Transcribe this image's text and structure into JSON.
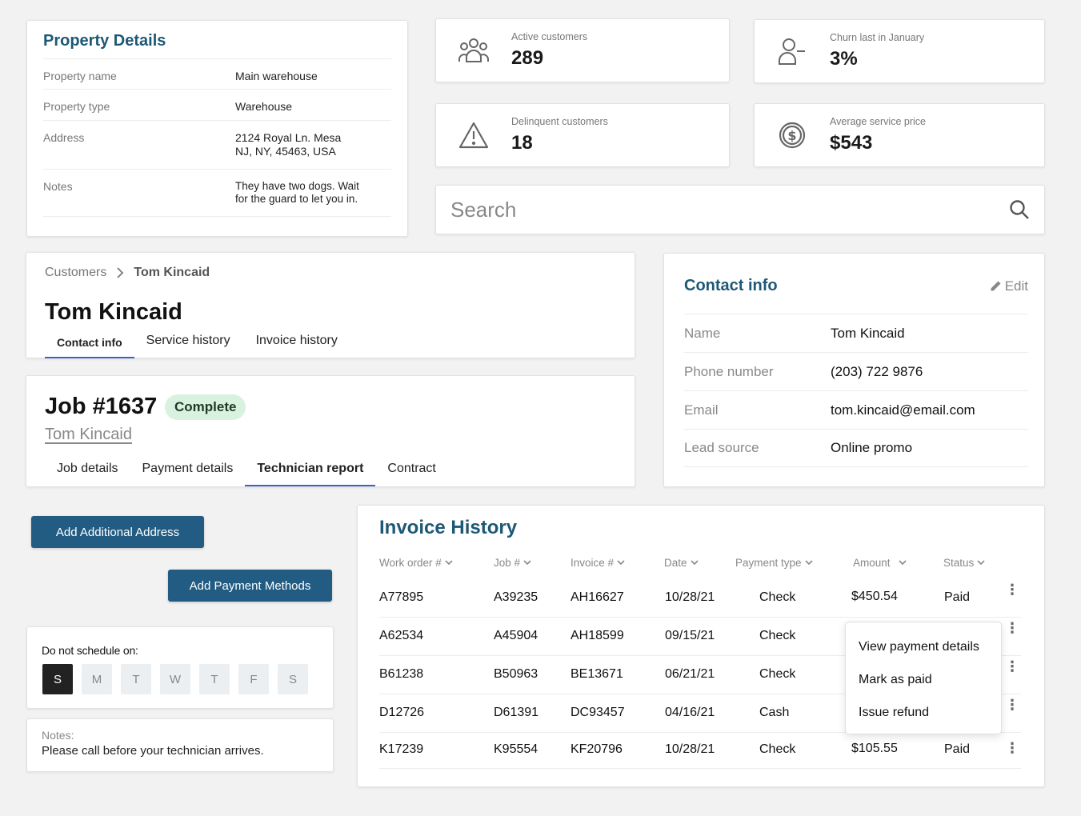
{
  "property": {
    "title": "Property Details",
    "rows": [
      {
        "label": "Property name",
        "value": "Main warehouse",
        "value2": ""
      },
      {
        "label": "Property type",
        "value": "Warehouse",
        "value2": ""
      },
      {
        "label": "Address",
        "value": "2124 Royal Ln. Mesa",
        "value2": "NJ, NY, 45463, USA"
      },
      {
        "label": "Notes",
        "value": "They have two dogs. Wait",
        "value2": "for the guard to let you in."
      }
    ]
  },
  "stats": [
    {
      "label": "Active customers",
      "value": "289",
      "icon": "users-icon"
    },
    {
      "label": "Churn last in January",
      "value": "3%",
      "icon": "user-minus-icon"
    },
    {
      "label": "Delinquent customers",
      "value": "18",
      "icon": "warning-icon"
    },
    {
      "label": "Average service price",
      "value": "$543",
      "icon": "dollar-icon"
    }
  ],
  "search": {
    "placeholder": "Search"
  },
  "customer": {
    "breadcrumb": [
      "Customers",
      "Tom Kincaid"
    ],
    "name": "Tom Kincaid",
    "tabs": [
      "Contact info",
      "Service history",
      "Invoice history"
    ],
    "active_tab": "Contact info"
  },
  "job": {
    "title": "Job #1637",
    "status": "Complete",
    "customer_link": "Tom Kincaid",
    "tabs": [
      "Job details",
      "Payment details",
      "Technician report",
      "Contract"
    ],
    "active_tab": "Technician report"
  },
  "contact": {
    "title": "Contact info",
    "edit_label": "Edit",
    "rows": [
      {
        "label": "Name",
        "value": "Tom Kincaid"
      },
      {
        "label": "Phone number",
        "value": "(203) 722 9876"
      },
      {
        "label": "Email",
        "value": "tom.kincaid@email.com"
      },
      {
        "label": "Lead source",
        "value": "Online promo"
      }
    ]
  },
  "buttons": {
    "add_address": "Add Additional Address",
    "add_payment": "Add Payment Methods"
  },
  "schedule": {
    "label": "Do not schedule on:",
    "days": [
      "S",
      "M",
      "T",
      "W",
      "T",
      "F",
      "S"
    ],
    "selected_index": 0
  },
  "notes": {
    "label": "Notes:",
    "text": "Please call before your technician arrives."
  },
  "invoice": {
    "title": "Invoice History",
    "columns": [
      "Work order #",
      "Job #",
      "Invoice #",
      "Date",
      "Payment type",
      "Amount",
      "Status"
    ],
    "rows": [
      {
        "work_order": "A77895",
        "job": "A39235",
        "invoice": "AH16627",
        "date": "10/28/21",
        "payment": "Check",
        "amount": "$450.54",
        "status": "Paid"
      },
      {
        "work_order": "A62534",
        "job": "A45904",
        "invoice": "AH18599",
        "date": "09/15/21",
        "payment": "Check",
        "amount": "",
        "status": ""
      },
      {
        "work_order": "B61238",
        "job": "B50963",
        "invoice": "BE13671",
        "date": "06/21/21",
        "payment": "Check",
        "amount": "",
        "status": ""
      },
      {
        "work_order": "D12726",
        "job": "D61391",
        "invoice": "DC93457",
        "date": "04/16/21",
        "payment": "Cash",
        "amount": "",
        "status": ""
      },
      {
        "work_order": "K17239",
        "job": "K95554",
        "invoice": "KF20796",
        "date": "10/28/21",
        "payment": "Check",
        "amount": "$105.55",
        "status": "Paid"
      }
    ],
    "menu": [
      "View payment details",
      "Mark as paid",
      "Issue refund"
    ]
  },
  "colors": {
    "accent": "#1d5876",
    "button": "#225c82",
    "tab_underline": "#3a62c2",
    "badge_bg": "#d9f2df"
  }
}
